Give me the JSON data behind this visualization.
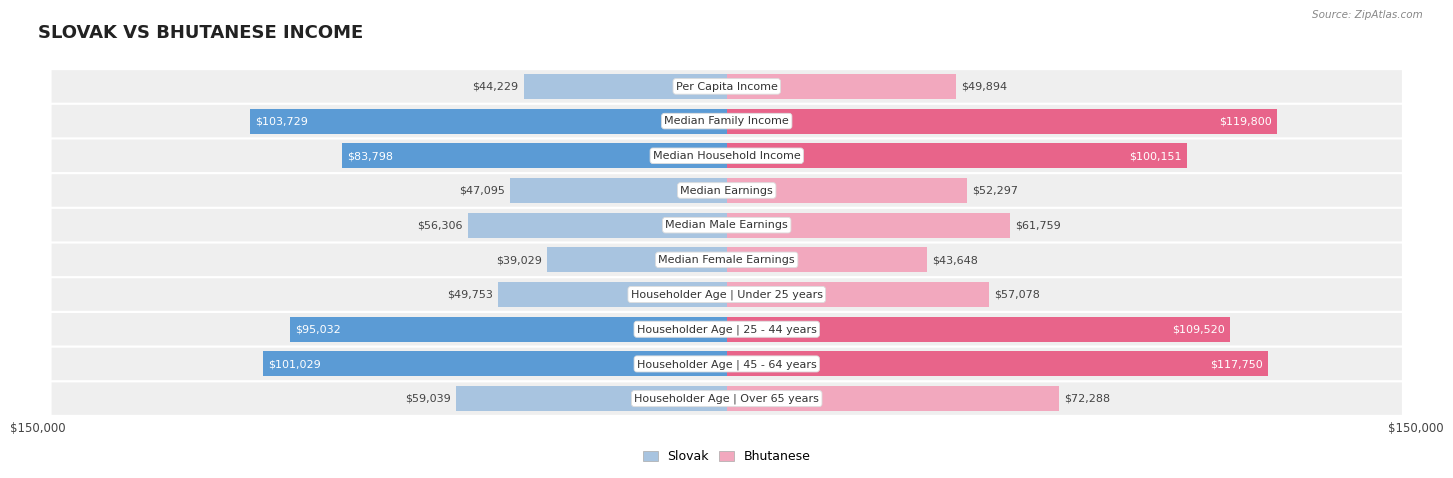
{
  "title": "SLOVAK VS BHUTANESE INCOME",
  "source": "Source: ZipAtlas.com",
  "categories": [
    "Per Capita Income",
    "Median Family Income",
    "Median Household Income",
    "Median Earnings",
    "Median Male Earnings",
    "Median Female Earnings",
    "Householder Age | Under 25 years",
    "Householder Age | 25 - 44 years",
    "Householder Age | 45 - 64 years",
    "Householder Age | Over 65 years"
  ],
  "slovak_values": [
    44229,
    103729,
    83798,
    47095,
    56306,
    39029,
    49753,
    95032,
    101029,
    59039
  ],
  "bhutanese_values": [
    49894,
    119800,
    100151,
    52297,
    61759,
    43648,
    57078,
    109520,
    117750,
    72288
  ],
  "slovak_labels": [
    "$44,229",
    "$103,729",
    "$83,798",
    "$47,095",
    "$56,306",
    "$39,029",
    "$49,753",
    "$95,032",
    "$101,029",
    "$59,039"
  ],
  "bhutanese_labels": [
    "$49,894",
    "$119,800",
    "$100,151",
    "$52,297",
    "$61,759",
    "$43,648",
    "$57,078",
    "$109,520",
    "$117,750",
    "$72,288"
  ],
  "slovak_color_light": "#a8c4e0",
  "slovak_color_dark": "#5b9bd5",
  "bhutanese_color_light": "#f2a8be",
  "bhutanese_color_dark": "#e8648a",
  "max_value": 150000,
  "x_tick_label_left": "$150,000",
  "x_tick_label_right": "$150,000",
  "legend_slovak": "Slovak",
  "legend_bhutanese": "Bhutanese",
  "background_color": "#ffffff",
  "row_bg_color": "#efefef",
  "dark_threshold": 80000,
  "title_fontsize": 13,
  "label_fontsize": 8,
  "category_fontsize": 8
}
